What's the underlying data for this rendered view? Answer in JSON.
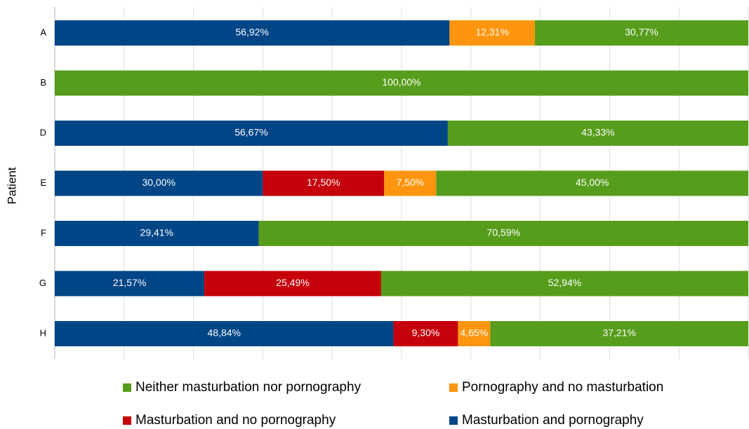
{
  "chart_data": {
    "type": "stacked_barh",
    "y_label": "Patient",
    "categories": [
      "A",
      "B",
      "D",
      "E",
      "F",
      "G",
      "H"
    ],
    "series": [
      {
        "name": "Masturbation and pornography",
        "color": "#004586",
        "values": [
          56.92,
          0,
          56.67,
          30.0,
          29.41,
          21.57,
          48.84
        ],
        "value_labels": [
          "56,92%",
          null,
          "56,67%",
          "30,00%",
          "29,41%",
          "21,57%",
          "48,84%"
        ]
      },
      {
        "name": "Masturbation and no pornography",
        "color": "#c5000b",
        "values": [
          0,
          0,
          0,
          17.5,
          0,
          25.49,
          9.3
        ],
        "value_labels": [
          null,
          null,
          null,
          "17,50%",
          null,
          "25,49%",
          "9,30%"
        ]
      },
      {
        "name": "Pornography and no masturbation",
        "color": "#ff950e",
        "values": [
          12.31,
          0,
          0,
          7.5,
          0,
          0,
          4.65
        ],
        "value_labels": [
          "12,31%",
          null,
          null,
          "7,50%",
          null,
          null,
          "4,65%"
        ]
      },
      {
        "name": "Neither masturbation nor pornography",
        "color": "#579d1c",
        "values": [
          30.77,
          100.0,
          43.33,
          45.0,
          70.59,
          52.94,
          37.21
        ],
        "value_labels": [
          "30,77%",
          "100,00%",
          "43,33%",
          "45,00%",
          "70,59%",
          "52,94%",
          "37,21%"
        ]
      }
    ],
    "xlim": [
      0,
      100
    ],
    "xticks": [
      0,
      10,
      20,
      30,
      40,
      50,
      60,
      70,
      80,
      90,
      100
    ],
    "grid": true
  }
}
